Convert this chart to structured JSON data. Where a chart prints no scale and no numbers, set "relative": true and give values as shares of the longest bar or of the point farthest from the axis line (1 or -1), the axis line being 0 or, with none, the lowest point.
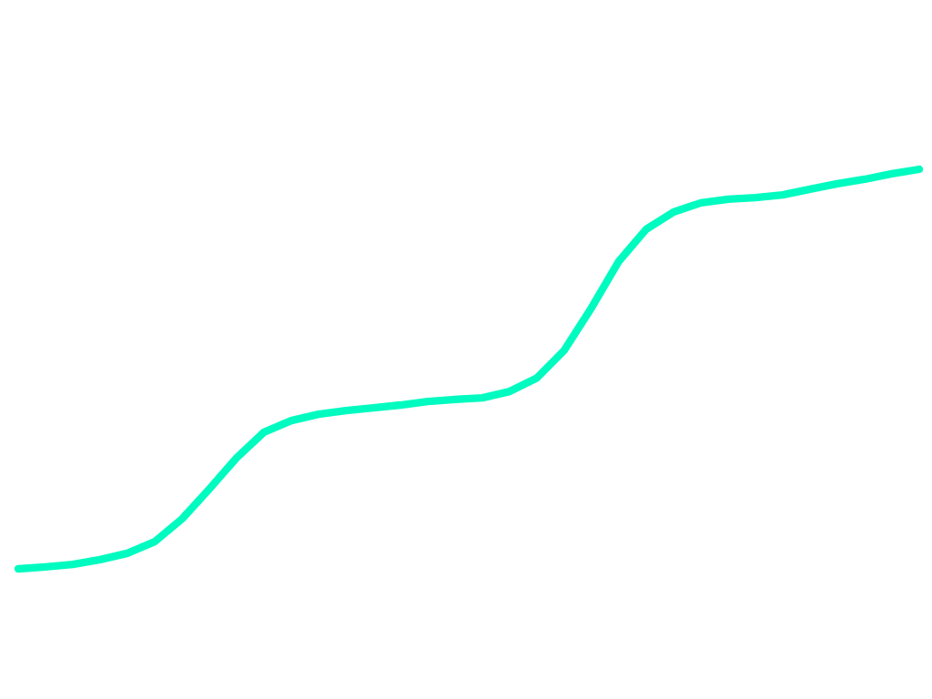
{
  "chart_data": {
    "type": "line",
    "relative": true,
    "categories": [
      null,
      null,
      null,
      null,
      null,
      null,
      null,
      null,
      null,
      null,
      null,
      null,
      null,
      null,
      null,
      null,
      null,
      null,
      null,
      null,
      null,
      null,
      null,
      null,
      null,
      null,
      null,
      null,
      null,
      null,
      null,
      null,
      null,
      null
    ],
    "series": [
      {
        "color": "#00fbc0",
        "values": [
          0,
          0.005,
          0.011,
          0.023,
          0.039,
          0.068,
          0.125,
          0.2,
          0.278,
          0.342,
          0.371,
          0.387,
          0.396,
          0.403,
          0.41,
          0.419,
          0.424,
          0.428,
          0.444,
          0.478,
          0.547,
          0.654,
          0.77,
          0.85,
          0.893,
          0.916,
          0.925,
          0.929,
          0.936,
          0.95,
          0.964,
          0.975,
          0.989,
          1
        ]
      }
    ]
  }
}
